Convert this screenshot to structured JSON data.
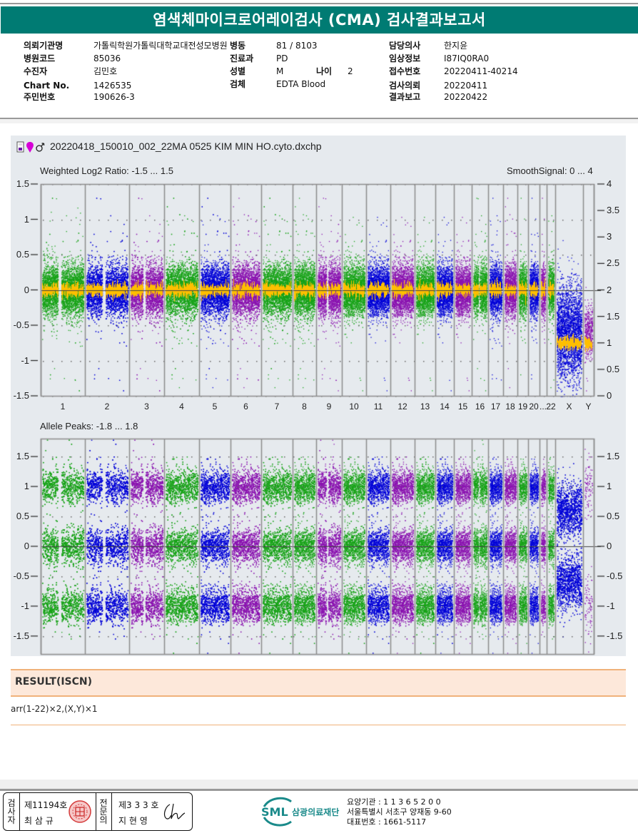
{
  "report": {
    "title": "염색체마이크로어레이검사 (CMA) 검사결과보고서"
  },
  "patient_info": {
    "left": [
      {
        "label": "의뢰기관명",
        "value": "가톨릭학원가톨릭대학교대전성모병원"
      },
      {
        "label": "병원코드",
        "value": "85036"
      },
      {
        "label": "수진자",
        "value": "김민호"
      },
      {
        "label": "Chart No.",
        "value": "1426535"
      },
      {
        "label": "주민번호",
        "value": "190626-3"
      }
    ],
    "middle": [
      {
        "label": "병동",
        "value": "81 / 8103"
      },
      {
        "label": "진료과",
        "value": "PD"
      },
      {
        "label": "성별",
        "value": "M"
      },
      {
        "label": "검체",
        "value": "EDTA Blood"
      }
    ],
    "age": {
      "label": "나이",
      "value": "2"
    },
    "right": [
      {
        "label": "담당의사",
        "value": "한지윤"
      },
      {
        "label": "임상정보",
        "value": "I87IQ0RA0"
      },
      {
        "label": "접수번호",
        "value": "20220411-40214"
      },
      {
        "label": "검사의뢰",
        "value": "20220411"
      },
      {
        "label": "결과보고",
        "value": "20220422"
      }
    ]
  },
  "plot": {
    "filename": "20220418_150010_002_22MA 0525 KIM MIN HO.cyto.dxchp",
    "icons": [
      "file-icon",
      "pin-icon",
      "male-icon"
    ],
    "colors": {
      "green": "#17a317",
      "blue": "#0000d8",
      "purple": "#8a12b0",
      "orange": "#ffbf00",
      "male": "#d600d6",
      "background": "#e6eaee",
      "border": "#8c8c8c"
    }
  },
  "chart_data": [
    {
      "type": "scatter",
      "title": "Weighted Log2 Ratio: -1.5 ... 1.5",
      "secondary_title": "SmoothSignal: 0 ... 4",
      "ylim": [
        -1.5,
        1.5
      ],
      "y2lim": [
        0,
        4
      ],
      "yticks": [
        "1.5",
        "1",
        "0.5",
        "0",
        "-0.5",
        "-1",
        "-1.5"
      ],
      "y2ticks": [
        "4",
        "3.5",
        "3",
        "2.5",
        "2",
        "1.5",
        "1",
        "0.5",
        "0"
      ],
      "categories": [
        "1",
        "2",
        "3",
        "4",
        "5",
        "6",
        "7",
        "8",
        "9",
        "10",
        "11",
        "12",
        "13",
        "14",
        "15",
        "16",
        "17",
        "18",
        "19",
        "20",
        "21",
        "22",
        "X",
        "Y"
      ],
      "xtick_labels": [
        "1",
        "2",
        "3",
        "4",
        "5",
        "6",
        "7",
        "8",
        "9",
        "10",
        "11",
        "12",
        "13",
        "14",
        "15",
        "16",
        "17",
        "18",
        "19",
        "20",
        "...",
        "22",
        "X",
        "Y"
      ],
      "smooth_signal": [
        2,
        2,
        2,
        2,
        2,
        2,
        2,
        2,
        2,
        2,
        2,
        2,
        2,
        2,
        2,
        2,
        2,
        2,
        2,
        2,
        2,
        2,
        1,
        1
      ],
      "log2_center": [
        0,
        0,
        0,
        0,
        0,
        0,
        0,
        0,
        0,
        0,
        0,
        0,
        0,
        0,
        0,
        0,
        0,
        0,
        0,
        0,
        0,
        0,
        -0.6,
        -0.6
      ]
    },
    {
      "type": "scatter",
      "title": "Allele Peaks: -1.8 ... 1.8",
      "ylim": [
        -1.8,
        1.8
      ],
      "yticks": [
        "1.5",
        "1",
        "0.5",
        "0",
        "-0.5",
        "-1",
        "-1.5"
      ],
      "categories": [
        "1",
        "2",
        "3",
        "4",
        "5",
        "6",
        "7",
        "8",
        "9",
        "10",
        "11",
        "12",
        "13",
        "14",
        "15",
        "16",
        "17",
        "18",
        "19",
        "20",
        "21",
        "22",
        "X",
        "Y"
      ],
      "peak_bands_autosomes": [
        1,
        0,
        -1
      ],
      "peak_bands_X": [
        0.6,
        -0.6
      ]
    }
  ],
  "result": {
    "heading": "RESULT(ISCN)",
    "value": "arr(1-22)×2,(X,Y)×1"
  },
  "signature": {
    "inspector_label": "검사자",
    "inspector_no": "제11194호",
    "inspector_name": "최 삼 규",
    "specialist_label": "전문의",
    "specialist_no": "제3 3 3 호",
    "specialist_name": "지 현 영",
    "seal_text": "인",
    "signature_text": "Chi"
  },
  "institution": {
    "logo_text": "SML",
    "name": "삼광의료재단",
    "line1": "요양기관 : 1 1 3 6 5 2 0 0",
    "line2": "서울특별시 서초구 양재동 9-60",
    "line3": "대표번호 : 1661-5117"
  }
}
